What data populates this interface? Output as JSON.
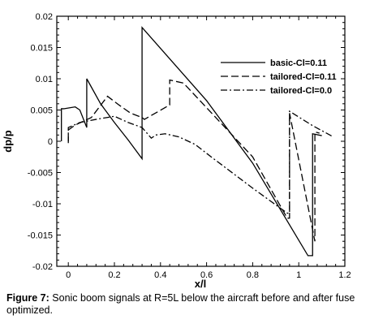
{
  "chart_data": {
    "type": "line",
    "xlabel": "x/l",
    "ylabel": "dp/p",
    "xlim": [
      -0.05,
      1.2
    ],
    "ylim": [
      -0.02,
      0.02
    ],
    "xticks": [
      "0",
      "0.2",
      "0.4",
      "0.6",
      "0.8",
      "1",
      "1.2"
    ],
    "xtick_values": [
      0,
      0.2,
      0.4,
      0.6,
      0.8,
      1.0,
      1.2
    ],
    "yticks": [
      "0.02",
      "0.015",
      "0.01",
      "0.005",
      "0",
      "-0.005",
      "-0.01",
      "-0.015",
      "-0.02"
    ],
    "ytick_values": [
      0.02,
      0.015,
      0.01,
      0.005,
      0,
      -0.005,
      -0.01,
      -0.015,
      -0.02
    ],
    "legend_position": "upper-right",
    "grid": false,
    "series": [
      {
        "name": "basic-Cl=0.11",
        "style": "solid",
        "x": [
          -0.03,
          -0.03,
          -0.02,
          -0.02,
          0.03,
          0.05,
          0.08,
          0.08,
          0.14,
          0.2,
          0.26,
          0.32,
          0.32,
          0.6,
          0.8,
          1.04,
          1.06,
          1.06,
          1.1
        ],
        "y": [
          0,
          0.0052,
          0.0052,
          0.0052,
          0.0055,
          0.005,
          0.0022,
          0.01,
          0.006,
          0.003,
          0.0002,
          -0.0028,
          0.0182,
          0.0065,
          -0.0035,
          -0.0183,
          -0.0183,
          0.0012,
          0.0009
        ]
      },
      {
        "name": "tailored-Cl=0.11",
        "style": "dashed",
        "x": [
          0.0,
          0.0,
          0.03,
          0.1,
          0.17,
          0.22,
          0.27,
          0.32,
          0.33,
          0.43,
          0.44,
          0.44,
          0.5,
          0.8,
          0.95,
          0.96,
          0.96,
          1.07,
          1.07,
          1.09
        ],
        "y": [
          0.0,
          0.0018,
          0.0026,
          0.0038,
          0.0072,
          0.0058,
          0.0045,
          0.0038,
          0.0035,
          0.0056,
          0.0058,
          0.0098,
          0.0093,
          -0.0025,
          -0.0123,
          -0.0123,
          0.0045,
          -0.016,
          0.0015,
          0.0013
        ]
      },
      {
        "name": "tailored-Cl=0.0",
        "style": "dashdot",
        "x": [
          0.0,
          0.0,
          0.05,
          0.12,
          0.2,
          0.26,
          0.32,
          0.36,
          0.38,
          0.42,
          0.48,
          0.55,
          0.62,
          0.8,
          0.95,
          0.96,
          0.96,
          1.06,
          1.15
        ],
        "y": [
          -0.0003,
          0.0022,
          0.003,
          0.0035,
          0.004,
          0.003,
          0.0022,
          0.0005,
          0.001,
          0.0012,
          0.0007,
          -0.0005,
          -0.0025,
          -0.0075,
          -0.0115,
          -0.0115,
          0.0048,
          0.0025,
          0.0007
        ]
      }
    ]
  },
  "caption": {
    "label": "Figure 7:",
    "text": "Sonic boom signals at R=5L below the aircraft before and after fuse optimized."
  }
}
